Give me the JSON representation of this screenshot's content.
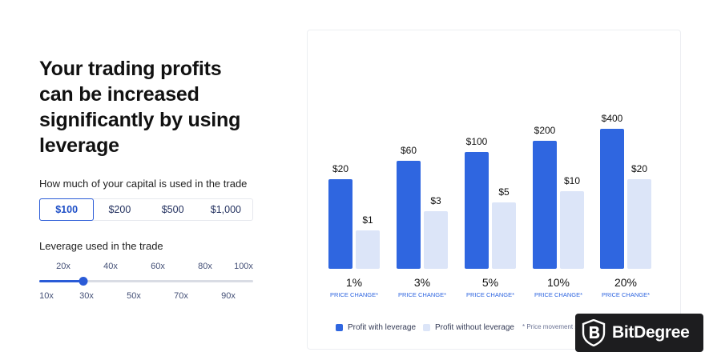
{
  "headline": [
    "Your trading profits",
    "can be increased",
    "significantly by using",
    "leverage"
  ],
  "capital": {
    "label": "How much of your capital is used in the trade",
    "options": [
      "$100",
      "$200",
      "$500",
      "$1,000"
    ],
    "selected_index": 0
  },
  "leverage": {
    "label": "Leverage used in the trade",
    "ticks_top": [
      "20x",
      "40x",
      "60x",
      "80x",
      "100x"
    ],
    "ticks_bottom": [
      "10x",
      "30x",
      "50x",
      "70x",
      "90x"
    ],
    "min": 10,
    "max": 100,
    "value": 20
  },
  "chart_data": {
    "type": "bar",
    "categories": [
      "1%",
      "3%",
      "5%",
      "10%",
      "20%"
    ],
    "category_sublabel": "PRICE CHANGE*",
    "series": [
      {
        "name": "Profit with leverage",
        "color": "#2f66e0",
        "values": [
          20,
          60,
          100,
          200,
          400
        ],
        "labels": [
          "$20",
          "$60",
          "$100",
          "$200",
          "$400"
        ]
      },
      {
        "name": "Profit without leverage",
        "color": "#dce5f8",
        "values": [
          1,
          3,
          5,
          10,
          20
        ],
        "labels": [
          "$1",
          "$3",
          "$5",
          "$10",
          "$20"
        ]
      }
    ],
    "grid": false,
    "legend_position": "bottom"
  },
  "footnote": "* Price movement si",
  "brand": {
    "name": "BitDegree",
    "logo": "shield-b-logo",
    "bg": "#1d1d1f"
  },
  "colors": {
    "accent": "#2a5bd7"
  }
}
